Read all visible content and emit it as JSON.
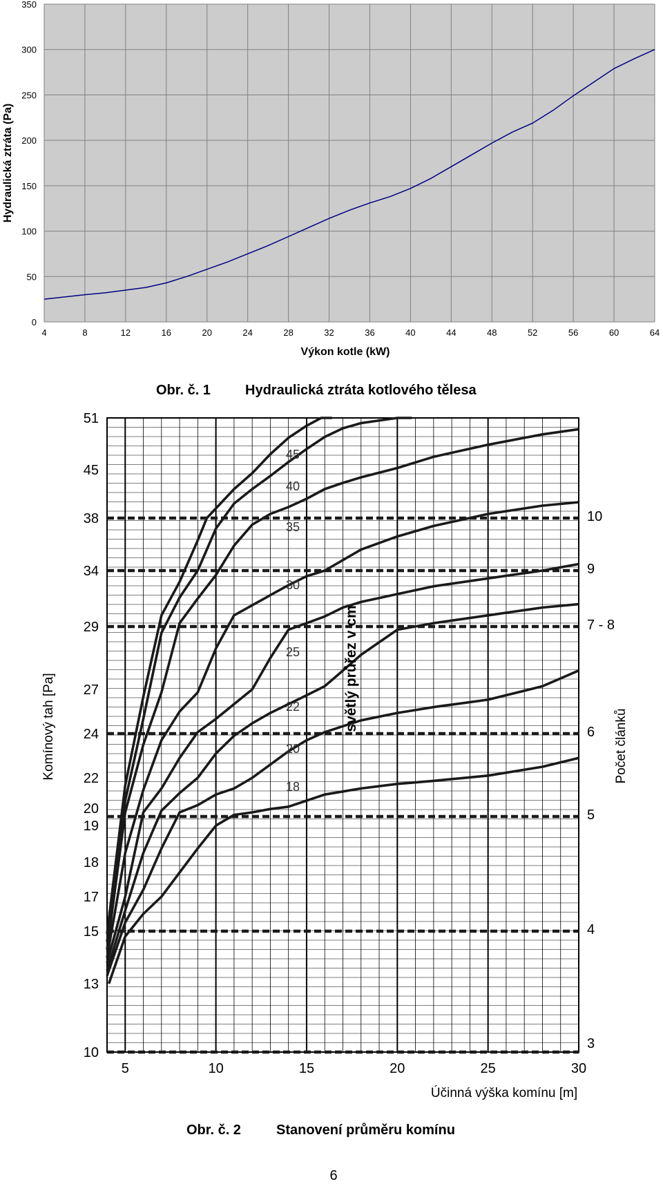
{
  "chart_data": [
    {
      "type": "line",
      "title": "",
      "xlabel": "Výkon kotle (kW)",
      "ylabel": "Hydraulická ztráta (Pa)",
      "xlim": [
        4,
        64
      ],
      "ylim": [
        0,
        350
      ],
      "x_ticks": [
        4,
        8,
        12,
        16,
        20,
        24,
        28,
        32,
        36,
        40,
        44,
        48,
        52,
        56,
        60,
        64
      ],
      "y_ticks": [
        0,
        50,
        100,
        150,
        200,
        250,
        300,
        350
      ],
      "grid": true,
      "colors": {
        "plot_bg": "#cccccc",
        "line": "#000080",
        "grid": "#808080"
      },
      "series": [
        {
          "x": [
            4,
            8,
            10,
            12,
            14,
            16,
            18,
            20,
            22,
            24,
            26,
            28,
            30,
            32,
            34,
            36,
            38,
            40,
            42,
            44,
            46,
            48,
            50,
            52,
            54,
            56,
            58,
            60,
            62,
            64
          ],
          "values": [
            25,
            30,
            32,
            35,
            38,
            43,
            50,
            58,
            66,
            75,
            84,
            94,
            104,
            114,
            123,
            131,
            138,
            147,
            158,
            171,
            184,
            197,
            209,
            219,
            233,
            249,
            264,
            279,
            290,
            300
          ]
        }
      ],
      "caption_number": "Obr. č. 1",
      "caption_text": "Hydraulická ztráta kotlového tělesa"
    },
    {
      "type": "line",
      "title": "",
      "xlabel": "Účinná výška komínu [m]",
      "ylabel": "Komínový tah [Pa]",
      "ylabel_right": "Počet článků",
      "xlim": [
        4,
        30
      ],
      "x_ticks": [
        5,
        10,
        15,
        20,
        25,
        30
      ],
      "y_ticks": [
        "10",
        "13",
        "15",
        "17",
        "18",
        "19",
        "20",
        "22",
        "24",
        "27",
        "29",
        "34",
        "38",
        "45",
        "51"
      ],
      "grid": true,
      "series_annotation": "světlý průřez v cm",
      "series": [
        {
          "name": "18",
          "x": [
            4.1,
            5,
            6,
            7,
            8,
            9,
            10,
            11,
            12,
            13,
            14,
            15,
            16,
            17,
            18,
            20,
            22,
            25,
            28,
            30
          ],
          "y": [
            13.0,
            14.8,
            16.0,
            17.0,
            17.7,
            18.3,
            18.8,
            19.2,
            19.5,
            19.9,
            20.1,
            20.5,
            20.9,
            21.1,
            21.3,
            21.6,
            21.8,
            22.1,
            22.5,
            22.9
          ]
        },
        {
          "name": "20",
          "x": [
            4.0,
            5,
            6,
            7,
            8,
            9,
            10,
            11,
            12,
            13,
            14,
            15,
            16,
            17,
            18,
            20,
            22,
            25,
            28,
            30
          ],
          "y": [
            13.3,
            15.5,
            17.2,
            18.3,
            19.5,
            20.2,
            20.9,
            21.3,
            22.0,
            22.6,
            23.2,
            23.7,
            24.1,
            24.5,
            24.9,
            25.4,
            25.8,
            26.3,
            27.1,
            27.6
          ]
        },
        {
          "name": "22",
          "x": [
            4.0,
            5,
            6,
            7,
            8,
            9,
            10,
            11,
            12,
            13,
            14,
            15,
            16,
            17,
            18,
            20,
            22,
            25,
            28,
            30
          ],
          "y": [
            13.5,
            16.2,
            18.2,
            19.7,
            21.0,
            22.0,
            23.1,
            23.9,
            24.7,
            25.4,
            26.0,
            26.6,
            27.1,
            27.6,
            28.1,
            28.9,
            29.3,
            30.0,
            30.7,
            31.0
          ]
        },
        {
          "name": "25",
          "x": [
            4.0,
            5,
            6,
            7,
            8,
            9,
            10,
            11,
            12,
            13,
            14,
            15,
            16,
            17,
            18,
            20,
            22,
            25,
            28,
            30
          ],
          "y": [
            13.8,
            17.0,
            19.5,
            21.3,
            22.9,
            24.1,
            25.0,
            26.0,
            27.0,
            28.0,
            28.9,
            29.3,
            29.9,
            30.7,
            31.2,
            31.9,
            32.6,
            33.3,
            34.0,
            34.5
          ]
        },
        {
          "name": "30",
          "x": [
            4.0,
            5,
            6,
            7,
            8,
            9,
            10,
            11,
            12,
            13,
            14,
            15,
            16,
            17,
            18,
            20,
            22,
            25,
            28,
            30
          ],
          "y": [
            14.0,
            18.2,
            21.2,
            23.7,
            25.5,
            26.8,
            28.3,
            30.0,
            30.9,
            31.8,
            32.7,
            33.5,
            34.0,
            34.8,
            35.6,
            36.6,
            37.4,
            38.6,
            39.8,
            40.3
          ]
        },
        {
          "name": "35",
          "x": [
            4.0,
            5,
            6,
            7,
            8,
            9,
            10,
            11,
            12,
            13,
            14,
            15,
            16,
            17,
            18,
            20,
            22,
            25,
            28,
            30
          ],
          "y": [
            14.3,
            19.5,
            23.5,
            26.8,
            29.3,
            31.5,
            33.6,
            35.9,
            37.5,
            38.6,
            39.6,
            40.8,
            42.2,
            43.1,
            43.9,
            45.2,
            46.5,
            47.9,
            49.1,
            49.7
          ]
        },
        {
          "name": "40",
          "x": [
            4.0,
            5,
            6,
            7,
            8,
            9,
            10,
            11,
            12,
            13,
            14,
            15,
            16,
            17,
            18,
            20,
            20.8
          ],
          "y": [
            14.6,
            20.5,
            25.0,
            28.8,
            31.6,
            34.0,
            37.2,
            40.1,
            42.2,
            44.1,
            45.9,
            47.4,
            48.8,
            49.8,
            50.4,
            51.6,
            52.0
          ]
        },
        {
          "name": "45",
          "x": [
            4.0,
            5,
            6,
            7,
            8,
            9,
            9.5,
            10,
            11,
            12,
            13,
            14,
            15,
            15.8,
            16.4
          ],
          "y": [
            14.9,
            21.5,
            26.5,
            30.0,
            33.0,
            36.3,
            38.0,
            39.4,
            42.2,
            44.5,
            46.8,
            48.7,
            50.1,
            51.2,
            52.0
          ]
        }
      ],
      "threshold_lines": [
        {
          "label": "10",
          "y_label": "38"
        },
        {
          "label": "9",
          "y_label": "34"
        },
        {
          "label": "7 - 8",
          "y_label": "29"
        },
        {
          "label": "6",
          "y_label": "24"
        },
        {
          "label": "5",
          "y_label": "19"
        },
        {
          "label": "4",
          "y_label": "15"
        },
        {
          "label": "3",
          "y_label": "10"
        }
      ],
      "caption_number": "Obr. č. 2",
      "caption_text": "Stanovení průměru komínu"
    }
  ],
  "page_number": "6"
}
